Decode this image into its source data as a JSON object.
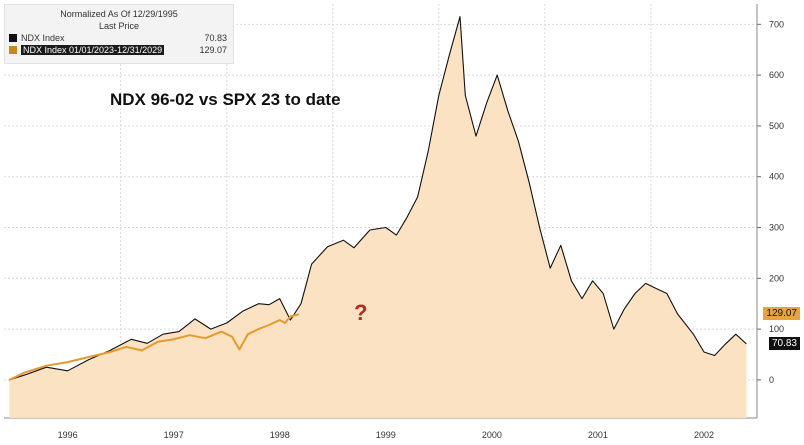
{
  "legend": {
    "header_line1": "Normalized As Of 12/29/1995",
    "header_line2": "Last Price",
    "items": [
      {
        "label": "NDX Index",
        "value": "70.83",
        "color": "#111111"
      },
      {
        "label": "NDX Index 01/01/2023-12/31/2029",
        "value": "129.07",
        "color": "#c8881a"
      }
    ]
  },
  "annotation": {
    "title": "NDX 96-02 vs SPX 23 to date",
    "question_mark": "?"
  },
  "value_tags": {
    "orange": {
      "text": "129.07",
      "bg": "#e7a43b"
    },
    "black": {
      "text": "70.83",
      "bg": "#111111"
    }
  },
  "chart_data": {
    "type": "area",
    "x_ticks": [
      "1996",
      "1997",
      "1998",
      "1999",
      "2000",
      "2001",
      "2002"
    ],
    "y_ticks": [
      0,
      100,
      200,
      300,
      400,
      500,
      600,
      700
    ],
    "xlim": [
      1995.9,
      2003.0
    ],
    "ylim": [
      -75,
      740
    ],
    "grid": true,
    "series": [
      {
        "name": "NDX Index",
        "color": "#111111",
        "fill": "#fbe2c3",
        "points": [
          [
            1995.95,
            0
          ],
          [
            1996.1,
            10
          ],
          [
            1996.3,
            25
          ],
          [
            1996.5,
            18
          ],
          [
            1996.7,
            40
          ],
          [
            1996.9,
            58
          ],
          [
            1997.1,
            80
          ],
          [
            1997.25,
            72
          ],
          [
            1997.4,
            90
          ],
          [
            1997.55,
            95
          ],
          [
            1997.7,
            120
          ],
          [
            1997.85,
            100
          ],
          [
            1998.0,
            112
          ],
          [
            1998.15,
            135
          ],
          [
            1998.3,
            150
          ],
          [
            1998.4,
            148
          ],
          [
            1998.5,
            160
          ],
          [
            1998.6,
            118
          ],
          [
            1998.7,
            150
          ],
          [
            1998.8,
            228
          ],
          [
            1998.95,
            262
          ],
          [
            1999.1,
            275
          ],
          [
            1999.2,
            260
          ],
          [
            1999.35,
            295
          ],
          [
            1999.5,
            300
          ],
          [
            1999.6,
            285
          ],
          [
            1999.7,
            320
          ],
          [
            1999.8,
            360
          ],
          [
            1999.9,
            450
          ],
          [
            2000.0,
            560
          ],
          [
            2000.1,
            640
          ],
          [
            2000.2,
            715
          ],
          [
            2000.25,
            560
          ],
          [
            2000.35,
            480
          ],
          [
            2000.45,
            545
          ],
          [
            2000.55,
            600
          ],
          [
            2000.65,
            530
          ],
          [
            2000.75,
            470
          ],
          [
            2000.85,
            390
          ],
          [
            2000.95,
            300
          ],
          [
            2001.05,
            220
          ],
          [
            2001.15,
            265
          ],
          [
            2001.25,
            195
          ],
          [
            2001.35,
            160
          ],
          [
            2001.45,
            195
          ],
          [
            2001.55,
            170
          ],
          [
            2001.65,
            100
          ],
          [
            2001.75,
            140
          ],
          [
            2001.85,
            170
          ],
          [
            2001.95,
            190
          ],
          [
            2002.05,
            180
          ],
          [
            2002.15,
            170
          ],
          [
            2002.25,
            130
          ],
          [
            2002.4,
            90
          ],
          [
            2002.5,
            55
          ],
          [
            2002.6,
            48
          ],
          [
            2002.7,
            70
          ],
          [
            2002.8,
            90
          ],
          [
            2002.9,
            70.83
          ]
        ]
      },
      {
        "name": "NDX Index 01/01/2023-12/31/2029",
        "color": "#e39b2e",
        "points": [
          [
            1995.95,
            0
          ],
          [
            1996.1,
            15
          ],
          [
            1996.3,
            28
          ],
          [
            1996.5,
            35
          ],
          [
            1996.7,
            45
          ],
          [
            1996.9,
            55
          ],
          [
            1997.05,
            65
          ],
          [
            1997.2,
            58
          ],
          [
            1997.35,
            75
          ],
          [
            1997.5,
            80
          ],
          [
            1997.65,
            88
          ],
          [
            1997.8,
            82
          ],
          [
            1997.95,
            95
          ],
          [
            1998.05,
            85
          ],
          [
            1998.12,
            60
          ],
          [
            1998.2,
            90
          ],
          [
            1998.3,
            100
          ],
          [
            1998.4,
            108
          ],
          [
            1998.5,
            118
          ],
          [
            1998.55,
            112
          ],
          [
            1998.6,
            125
          ],
          [
            1998.68,
            129.07
          ]
        ]
      }
    ]
  }
}
